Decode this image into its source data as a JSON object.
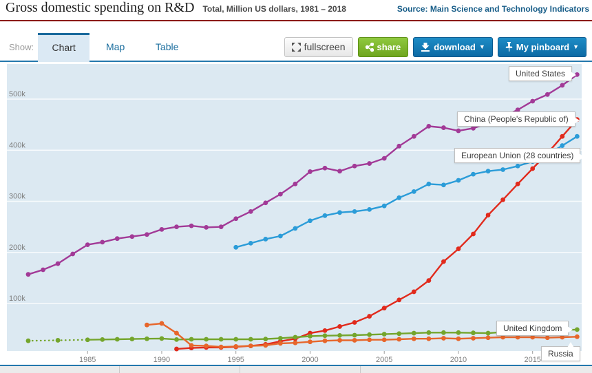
{
  "header": {
    "title": "Gross domestic spending on R&D",
    "subtitle": "Total, Million US dollars, 1981 – 2018",
    "source": "Source: Main Science and Technology Indicators"
  },
  "toolbar": {
    "show_label": "Show:",
    "tabs": [
      {
        "label": "Chart",
        "active": true
      },
      {
        "label": "Map",
        "active": false
      },
      {
        "label": "Table",
        "active": false
      }
    ],
    "buttons": {
      "fullscreen": "fullscreen",
      "share": "share",
      "download": "download",
      "pinboard": "My pinboard",
      "caret": "▼"
    }
  },
  "chart_data": {
    "type": "line",
    "title": "Gross domestic spending on R&D",
    "subtitle": "Total, Million US dollars, 1981 – 2018",
    "unit": "Million US dollars",
    "x_range": [
      1981,
      2018
    ],
    "ylim": [
      0,
      568000
    ],
    "grid": "horizontal",
    "legend_position": "inline-labels",
    "x_ticks": [
      1985,
      1990,
      1995,
      2000,
      2005,
      2010,
      2015
    ],
    "y_ticks": [
      {
        "value": 100000,
        "label": "100k"
      },
      {
        "value": 200000,
        "label": "200k"
      },
      {
        "value": 300000,
        "label": "300k"
      },
      {
        "value": 400000,
        "label": "400k"
      },
      {
        "value": 500000,
        "label": "500k"
      }
    ],
    "series": [
      {
        "name": "United States",
        "color": "#a23a97",
        "start": 1981,
        "values": [
          157000,
          166000,
          178000,
          197000,
          215000,
          220000,
          227000,
          231000,
          235000,
          245000,
          250000,
          252000,
          249000,
          250000,
          266000,
          280000,
          297000,
          314000,
          334000,
          358000,
          365000,
          359000,
          369000,
          374000,
          384000,
          408000,
          427000,
          447000,
          444000,
          438000,
          443000,
          453000,
          465000,
          479000,
          496000,
          509000,
          527000,
          548000
        ]
      },
      {
        "name": "European Union (28 countries)",
        "color": "#2b9cd8",
        "start": 1995,
        "values": [
          210000,
          218000,
          226000,
          232000,
          247000,
          262000,
          272000,
          278000,
          280000,
          284000,
          291000,
          307000,
          319000,
          334000,
          332000,
          341000,
          353000,
          359000,
          362000,
          369000,
          378000,
          392000,
          409000,
          427000
        ]
      },
      {
        "name": "China (People's Republic of)",
        "color": "#e12a1c",
        "start": 1991,
        "values": [
          11000,
          13000,
          14000,
          14000,
          15000,
          17000,
          20000,
          26000,
          31000,
          42000,
          47000,
          55000,
          63000,
          75000,
          91000,
          107000,
          123000,
          145000,
          182000,
          207000,
          236000,
          273000,
          303000,
          334000,
          364000,
          394000,
          427000,
          460000
        ]
      },
      {
        "name": "United Kingdom",
        "color": "#74a52c",
        "dotted_until": 1985,
        "years": [
          1981,
          1983,
          1985,
          1986,
          1987,
          1988,
          1989,
          1990,
          1991,
          1992,
          1993,
          1994,
          1995,
          1996,
          1997,
          1998,
          1999,
          2000,
          2001,
          2002,
          2003,
          2004,
          2005,
          2006,
          2007,
          2008,
          2009,
          2010,
          2011,
          2012,
          2013,
          2014,
          2015,
          2016,
          2017,
          2018
        ],
        "values": [
          27000,
          28000,
          29000,
          29500,
          30000,
          30500,
          31000,
          31500,
          29500,
          30000,
          30000,
          30000,
          30000,
          30000,
          30500,
          32000,
          34000,
          36000,
          37000,
          37500,
          38000,
          39000,
          40000,
          41000,
          42000,
          43000,
          43000,
          43000,
          42500,
          42000,
          44000,
          45000,
          46000,
          47000,
          48000,
          49000
        ]
      },
      {
        "name": "Russia",
        "color": "#e7662b",
        "start": 1989,
        "values": [
          58000,
          61000,
          42000,
          18000,
          17000,
          15000,
          16000,
          17000,
          18000,
          22000,
          23000,
          25000,
          27000,
          28000,
          28000,
          29000,
          29000,
          30000,
          31000,
          31000,
          32000,
          31000,
          32000,
          33000,
          34000,
          34000,
          34000,
          33000,
          34000,
          35000
        ]
      }
    ]
  }
}
